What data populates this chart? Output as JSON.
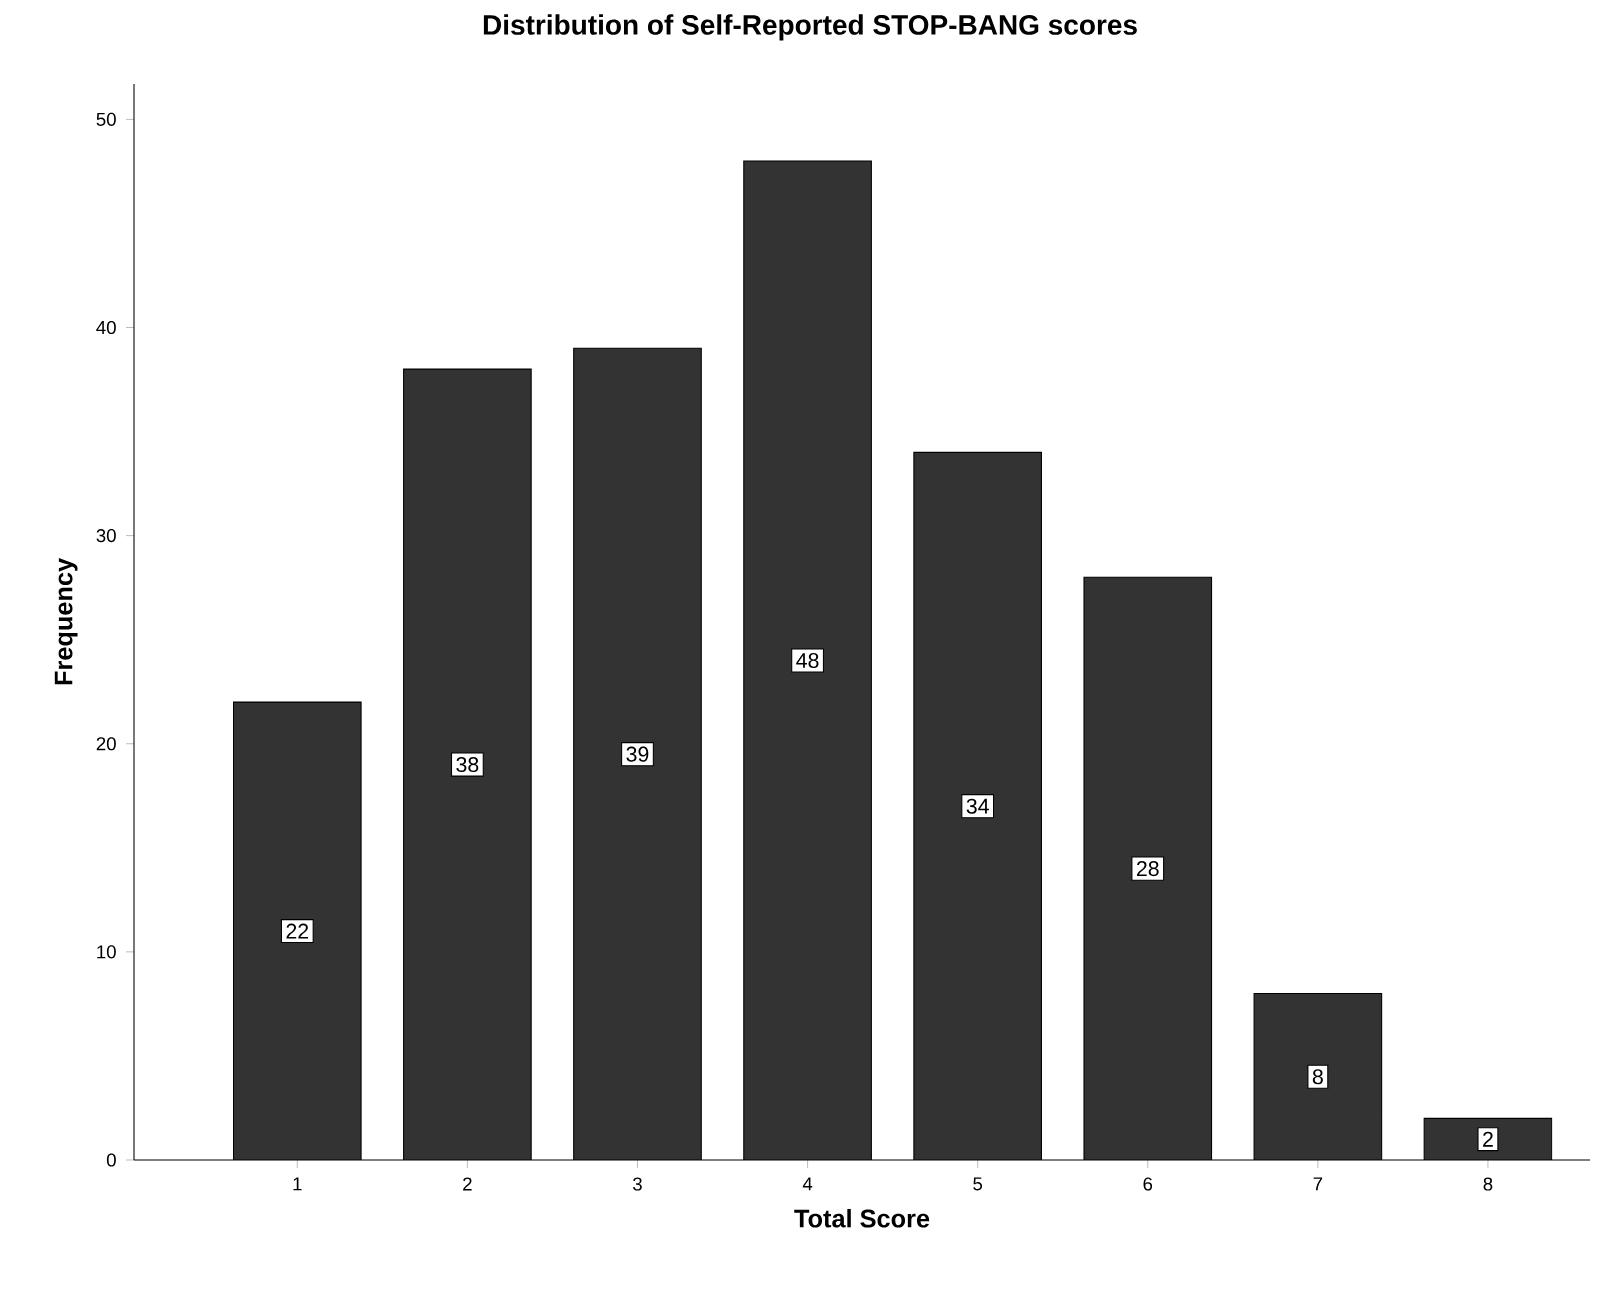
{
  "chart_data": {
    "type": "bar",
    "title": "Distribution of Self-Reported STOP-BANG scores",
    "xlabel": "Total Score",
    "ylabel": "Frequency",
    "categories": [
      "1",
      "2",
      "3",
      "4",
      "5",
      "6",
      "7",
      "8"
    ],
    "values": [
      22,
      38,
      39,
      48,
      34,
      28,
      8,
      2
    ],
    "color": "#333333",
    "ylim": [
      0,
      51.7
    ],
    "yticks": [
      0,
      10,
      20,
      30,
      40,
      50
    ],
    "data_labels": true
  }
}
